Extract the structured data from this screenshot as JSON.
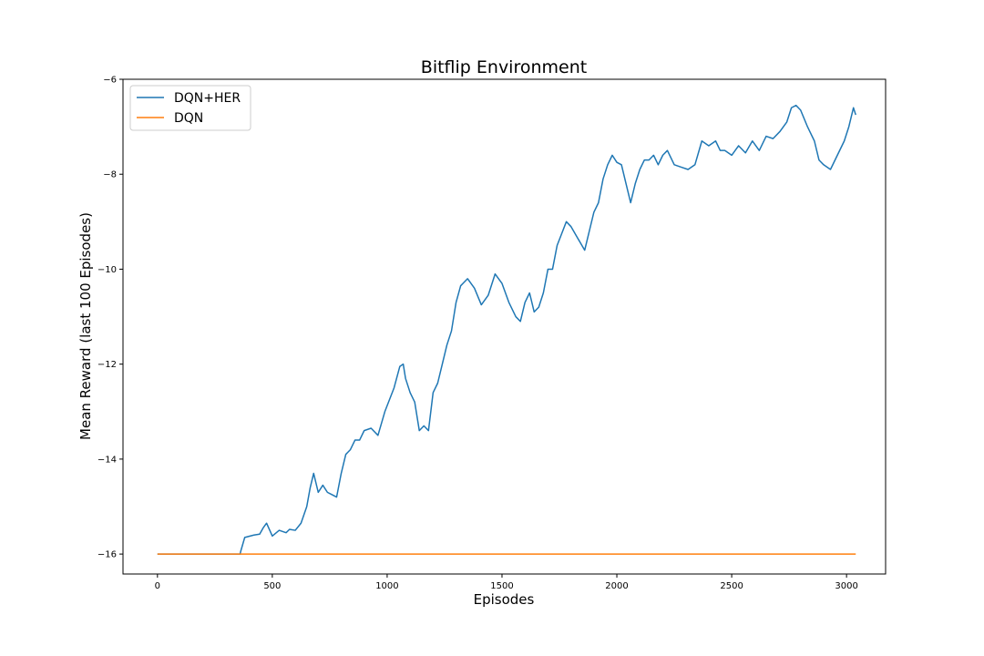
{
  "chart_data": {
    "type": "line",
    "title": "Bitflip Environment",
    "xlabel": "Episodes",
    "ylabel": "Mean Reward (last 100 Episodes)",
    "xlim": [
      -150,
      3170
    ],
    "ylim": [
      -16.42,
      -6.0
    ],
    "xticks": [
      0,
      500,
      1000,
      1500,
      2000,
      2500,
      3000
    ],
    "yticks": [
      -16,
      -14,
      -12,
      -10,
      -8,
      -6
    ],
    "xtick_labels": [
      "0",
      "500",
      "1000",
      "1500",
      "2000",
      "2500",
      "3000"
    ],
    "ytick_labels": [
      "−16",
      "−14",
      "−12",
      "−10",
      "−8",
      "−6"
    ],
    "grid": false,
    "legend": "top-left",
    "series": [
      {
        "name": "DQN+HER",
        "color": "#1f77b4",
        "x": [
          0,
          360,
          362,
          380,
          420,
          445,
          460,
          475,
          500,
          530,
          560,
          575,
          600,
          625,
          650,
          665,
          680,
          700,
          720,
          740,
          760,
          780,
          800,
          820,
          840,
          860,
          880,
          900,
          930,
          960,
          990,
          1030,
          1055,
          1070,
          1080,
          1100,
          1120,
          1140,
          1160,
          1180,
          1200,
          1220,
          1240,
          1260,
          1280,
          1300,
          1320,
          1350,
          1380,
          1410,
          1440,
          1470,
          1500,
          1530,
          1560,
          1580,
          1600,
          1620,
          1640,
          1660,
          1680,
          1700,
          1720,
          1740,
          1760,
          1780,
          1800,
          1830,
          1860,
          1880,
          1900,
          1920,
          1940,
          1960,
          1980,
          2000,
          2020,
          2040,
          2060,
          2080,
          2100,
          2120,
          2140,
          2160,
          2180,
          2200,
          2220,
          2250,
          2280,
          2310,
          2340,
          2370,
          2400,
          2430,
          2450,
          2470,
          2500,
          2530,
          2560,
          2590,
          2620,
          2650,
          2680,
          2710,
          2740,
          2760,
          2780,
          2800,
          2830,
          2860,
          2880,
          2900,
          2930,
          2960,
          2990,
          3010,
          3020,
          3030,
          3040
        ],
        "y": [
          -16.0,
          -16.0,
          -15.95,
          -15.65,
          -15.6,
          -15.58,
          -15.45,
          -15.35,
          -15.62,
          -15.5,
          -15.55,
          -15.48,
          -15.5,
          -15.35,
          -15.0,
          -14.6,
          -14.3,
          -14.7,
          -14.55,
          -14.7,
          -14.75,
          -14.8,
          -14.3,
          -13.9,
          -13.8,
          -13.6,
          -13.6,
          -13.4,
          -13.35,
          -13.5,
          -13.0,
          -12.5,
          -12.05,
          -12.0,
          -12.3,
          -12.6,
          -12.8,
          -13.4,
          -13.3,
          -13.4,
          -12.6,
          -12.4,
          -12.0,
          -11.6,
          -11.3,
          -10.7,
          -10.35,
          -10.2,
          -10.4,
          -10.75,
          -10.55,
          -10.1,
          -10.3,
          -10.7,
          -11.0,
          -11.1,
          -10.7,
          -10.5,
          -10.9,
          -10.8,
          -10.5,
          -10.0,
          -10.0,
          -9.5,
          -9.25,
          -9.0,
          -9.1,
          -9.35,
          -9.6,
          -9.2,
          -8.8,
          -8.6,
          -8.1,
          -7.8,
          -7.6,
          -7.75,
          -7.8,
          -8.2,
          -8.6,
          -8.2,
          -7.9,
          -7.7,
          -7.7,
          -7.6,
          -7.8,
          -7.6,
          -7.5,
          -7.8,
          -7.85,
          -7.9,
          -7.8,
          -7.3,
          -7.4,
          -7.3,
          -7.5,
          -7.5,
          -7.6,
          -7.4,
          -7.55,
          -7.3,
          -7.5,
          -7.2,
          -7.25,
          -7.1,
          -6.9,
          -6.6,
          -6.55,
          -6.65,
          -7.0,
          -7.3,
          -7.7,
          -7.8,
          -7.9,
          -7.6,
          -7.3,
          -7.0,
          -6.8,
          -6.6,
          -6.75
        ]
      },
      {
        "name": "DQN",
        "color": "#ff7f0e",
        "x": [
          0,
          3040
        ],
        "y": [
          -16.0,
          -16.0
        ]
      }
    ]
  }
}
